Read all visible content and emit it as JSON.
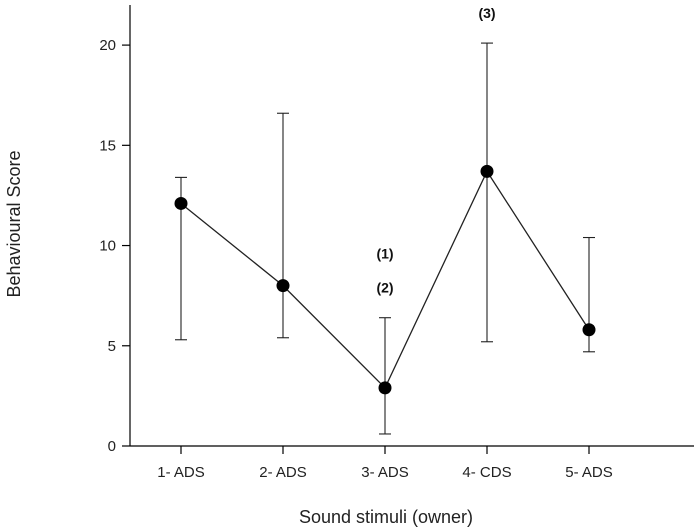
{
  "chart_data": {
    "type": "line",
    "title": "",
    "xlabel": "Sound stimuli (owner)",
    "ylabel": "Behavioural Score",
    "ylim": [
      0,
      22
    ],
    "yticks": [
      0,
      5,
      10,
      15,
      20
    ],
    "grid": false,
    "categories": [
      "1- ADS",
      "2- ADS",
      "3- ADS",
      "4- CDS",
      "5- ADS"
    ],
    "series": [
      {
        "name": "Behavioural Score",
        "values": [
          12.1,
          8.0,
          2.9,
          13.7,
          5.8
        ],
        "err_low": [
          5.3,
          5.4,
          0.6,
          5.2,
          4.7
        ],
        "err_high": [
          13.4,
          16.6,
          6.4,
          20.1,
          10.4
        ]
      }
    ],
    "annotations": [
      {
        "text": "(1)",
        "category_index": 2,
        "y": 9.6
      },
      {
        "text": "(2)",
        "category_index": 2,
        "y": 7.9
      },
      {
        "text": "(3)",
        "category_index": 3,
        "y": 21.6
      }
    ]
  }
}
